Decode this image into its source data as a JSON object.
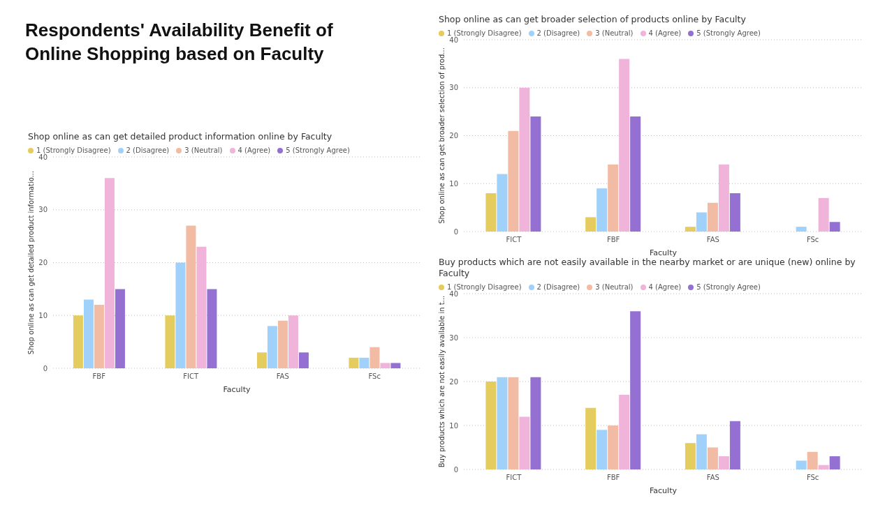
{
  "chart_data": [
    {
      "type": "other",
      "title": "Respondents' Availability Benefit of Online Shopping based on Faculty"
    },
    {
      "type": "bar",
      "title": "Shop online as can get detailed product information online by Faculty",
      "xlabel": "Faculty",
      "ylabel": "Shop online as can get detailed product informatio...",
      "categories": [
        "FBF",
        "FICT",
        "FAS",
        "FSc"
      ],
      "ylim": [
        0,
        40
      ],
      "yticks": [
        0,
        10,
        20,
        30,
        40
      ],
      "grid": "y",
      "legend": "top left",
      "series": [
        {
          "name": "1 (Strongly Disagree)",
          "color": "#e5cc5e",
          "values": [
            10,
            10,
            3,
            2
          ]
        },
        {
          "name": "2 (Disagree)",
          "color": "#9fd1fa",
          "values": [
            13,
            20,
            8,
            2
          ]
        },
        {
          "name": "3 (Neutral)",
          "color": "#f2bba4",
          "values": [
            12,
            27,
            9,
            4
          ]
        },
        {
          "name": "4 (Agree)",
          "color": "#f0b3d9",
          "values": [
            36,
            23,
            10,
            1
          ]
        },
        {
          "name": "5 (Strongly Agree)",
          "color": "#9370d1",
          "values": [
            15,
            15,
            3,
            1
          ]
        }
      ]
    },
    {
      "type": "bar",
      "title": "Shop online as can get broader selection of products online by Faculty",
      "xlabel": "Faculty",
      "ylabel": "Shop online as can get broader selection of prod...",
      "categories": [
        "FICT",
        "FBF",
        "FAS",
        "FSc"
      ],
      "ylim": [
        0,
        40
      ],
      "yticks": [
        0,
        10,
        20,
        30,
        40
      ],
      "grid": "y",
      "legend": "top left",
      "series": [
        {
          "name": "1 (Strongly Disagree)",
          "color": "#e5cc5e",
          "values": [
            8,
            3,
            1,
            null
          ]
        },
        {
          "name": "2 (Disagree)",
          "color": "#9fd1fa",
          "values": [
            12,
            9,
            4,
            1
          ]
        },
        {
          "name": "3 (Neutral)",
          "color": "#f2bba4",
          "values": [
            21,
            14,
            6,
            null
          ]
        },
        {
          "name": "4 (Agree)",
          "color": "#f0b3d9",
          "values": [
            30,
            36,
            14,
            7
          ]
        },
        {
          "name": "5 (Strongly Agree)",
          "color": "#9370d1",
          "values": [
            24,
            24,
            8,
            2
          ]
        }
      ]
    },
    {
      "type": "bar",
      "title": "Buy products which are not easily available in the nearby market or are unique (new) online by Faculty",
      "xlabel": "Faculty",
      "ylabel": "Buy products which are not easily available in t...",
      "categories": [
        "FICT",
        "FBF",
        "FAS",
        "FSc"
      ],
      "ylim": [
        0,
        40
      ],
      "yticks": [
        0,
        10,
        20,
        30,
        40
      ],
      "grid": "y",
      "legend": "top left",
      "series": [
        {
          "name": "1 (Strongly Disagree)",
          "color": "#e5cc5e",
          "values": [
            20,
            14,
            6,
            null
          ]
        },
        {
          "name": "2 (Disagree)",
          "color": "#9fd1fa",
          "values": [
            21,
            9,
            8,
            2
          ]
        },
        {
          "name": "3 (Neutral)",
          "color": "#f2bba4",
          "values": [
            21,
            10,
            5,
            4
          ]
        },
        {
          "name": "4 (Agree)",
          "color": "#f0b3d9",
          "values": [
            12,
            17,
            3,
            1
          ]
        },
        {
          "name": "5 (Strongly Agree)",
          "color": "#9370d1",
          "values": [
            21,
            36,
            11,
            3
          ]
        }
      ]
    }
  ]
}
